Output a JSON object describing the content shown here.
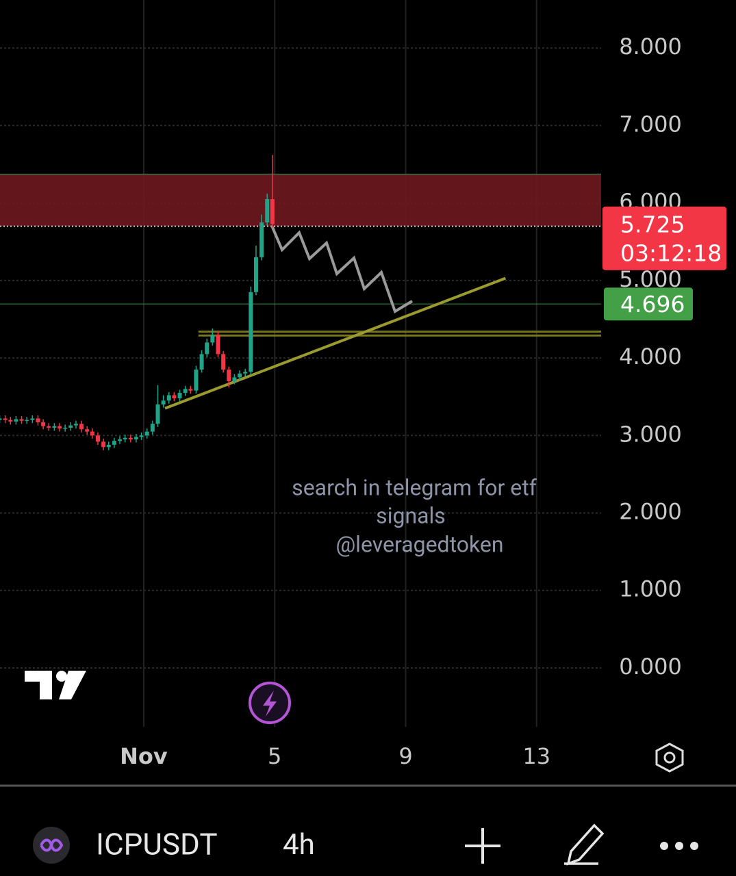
{
  "chart_data": {
    "type": "candlestick",
    "x": [
      -3.4,
      -3.23,
      -3.07,
      -2.9,
      -2.73,
      -2.57,
      -2.4,
      -2.23,
      -2.07,
      -1.9,
      -1.73,
      -1.57,
      -1.4,
      -1.23,
      -1.07,
      -0.9,
      -0.73,
      -0.57,
      -0.4,
      -0.23,
      -0.07,
      0.1,
      0.27,
      0.43,
      0.6,
      0.77,
      0.93,
      1.1,
      1.27,
      1.43,
      1.6,
      1.77,
      1.93,
      2.1,
      2.27,
      2.43,
      2.6,
      2.77,
      2.93,
      3.1,
      3.27,
      3.43,
      3.6,
      3.77,
      3.93,
      4.1,
      4.27,
      4.43,
      4.6,
      4.77,
      4.93
    ],
    "open": [
      3.2,
      3.22,
      3.2,
      3.18,
      3.21,
      3.19,
      3.2,
      3.22,
      3.17,
      3.12,
      3.1,
      3.12,
      3.09,
      3.1,
      3.13,
      3.15,
      3.08,
      3.05,
      3.0,
      2.92,
      2.85,
      2.88,
      2.93,
      2.95,
      2.97,
      2.95,
      2.98,
      3.0,
      3.05,
      3.15,
      3.4,
      3.45,
      3.52,
      3.48,
      3.55,
      3.6,
      3.58,
      3.85,
      4.05,
      4.2,
      4.3,
      4.05,
      3.85,
      3.7,
      3.75,
      3.8,
      3.82,
      4.85,
      5.3,
      5.75,
      6.05
    ],
    "high": [
      3.26,
      3.26,
      3.24,
      3.25,
      3.25,
      3.24,
      3.26,
      3.26,
      3.21,
      3.16,
      3.16,
      3.16,
      3.14,
      3.17,
      3.19,
      3.19,
      3.12,
      3.09,
      3.04,
      2.96,
      2.92,
      2.97,
      2.99,
      3.01,
      3.01,
      3.02,
      3.04,
      3.09,
      3.19,
      3.65,
      3.52,
      3.56,
      3.56,
      3.59,
      3.64,
      3.64,
      3.9,
      4.1,
      4.25,
      4.38,
      4.34,
      4.09,
      3.89,
      3.79,
      3.84,
      3.86,
      4.92,
      5.45,
      5.85,
      6.12,
      6.62
    ],
    "low": [
      3.16,
      3.16,
      3.14,
      3.14,
      3.15,
      3.15,
      3.16,
      3.13,
      3.08,
      3.06,
      3.06,
      3.05,
      3.05,
      3.06,
      3.09,
      3.04,
      3.01,
      2.96,
      2.88,
      2.81,
      2.81,
      2.84,
      2.89,
      2.91,
      2.91,
      2.91,
      2.94,
      2.96,
      3.01,
      3.11,
      3.36,
      3.41,
      3.44,
      3.44,
      3.51,
      3.54,
      3.54,
      3.81,
      4.01,
      4.16,
      4.01,
      3.81,
      3.62,
      3.66,
      3.71,
      3.76,
      3.78,
      4.81,
      5.26,
      5.71,
      5.68
    ],
    "close": [
      3.22,
      3.2,
      3.18,
      3.21,
      3.19,
      3.2,
      3.22,
      3.17,
      3.12,
      3.1,
      3.12,
      3.09,
      3.1,
      3.13,
      3.15,
      3.08,
      3.05,
      3.0,
      2.92,
      2.85,
      2.88,
      2.93,
      2.95,
      2.97,
      2.95,
      2.98,
      3.0,
      3.05,
      3.15,
      3.4,
      3.45,
      3.52,
      3.48,
      3.55,
      3.6,
      3.58,
      3.85,
      4.05,
      4.2,
      4.3,
      4.05,
      3.85,
      3.7,
      3.75,
      3.8,
      3.82,
      4.85,
      5.3,
      5.75,
      6.05,
      5.725
    ],
    "up_color": "#22a388",
    "down_color": "#f23645",
    "xlim": [
      -3.39,
      14.97
    ],
    "xticks": [
      {
        "value": 1,
        "label": "Nov"
      },
      5,
      9,
      13
    ],
    "ylim": [
      -0.76,
      8.62
    ],
    "yticks": [
      {
        "value": 0,
        "label": "0.000"
      },
      {
        "value": 1,
        "label": "1.000"
      },
      {
        "value": 2,
        "label": "2.000"
      },
      {
        "value": 3,
        "label": "3.000"
      },
      {
        "value": 4,
        "label": "4.000"
      },
      {
        "value": 5,
        "label": "5.000"
      },
      {
        "value": 6,
        "label": "6.000"
      },
      {
        "value": 7,
        "label": "7.000"
      },
      {
        "value": 8,
        "label": "8.000"
      }
    ],
    "grid": true,
    "zone": [
      5.7,
      6.37
    ],
    "zone_color": "#6e1a20",
    "price_line": 4.696,
    "price_line_color": "#43a047",
    "level_lines": [
      4.34,
      4.29
    ],
    "level_start_x": 2.67,
    "level_color": "#77761c",
    "trendline": {
      "x": [
        1.65,
        12.05
      ],
      "y": [
        3.35,
        5.03
      ]
    },
    "trendline_color": "#9a9a2e",
    "countdown": "03:12:18"
  },
  "watermark": [
    "search in  telegram for etf",
    "signals",
    "@leveragedtoken"
  ],
  "toolbar": {
    "symbol": "ICPUSDT",
    "interval": "4h"
  }
}
